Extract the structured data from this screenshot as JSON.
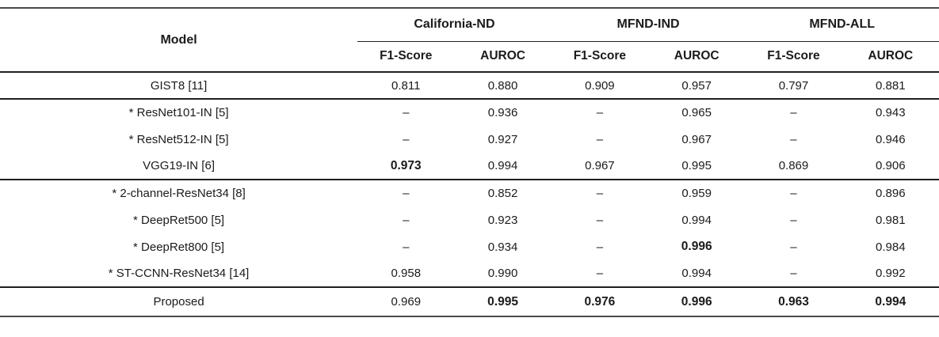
{
  "table": {
    "header": {
      "model": "Model",
      "groups": [
        {
          "label": "California-ND"
        },
        {
          "label": "MFND-IND"
        },
        {
          "label": "MFND-ALL"
        }
      ],
      "metrics": [
        "F1-Score",
        "AUROC",
        "F1-Score",
        "AUROC",
        "F1-Score",
        "AUROC"
      ]
    },
    "rows": [
      {
        "model": "GIST8 [11]",
        "values": [
          "0.811",
          "0.880",
          "0.909",
          "0.957",
          "0.797",
          "0.881"
        ],
        "bold": [
          false,
          false,
          false,
          false,
          false,
          false
        ]
      },
      {
        "model": "* ResNet101-IN [5]",
        "values": [
          "–",
          "0.936",
          "–",
          "0.965",
          "–",
          "0.943"
        ],
        "bold": [
          false,
          false,
          false,
          false,
          false,
          false
        ]
      },
      {
        "model": "* ResNet512-IN [5]",
        "values": [
          "–",
          "0.927",
          "–",
          "0.967",
          "–",
          "0.946"
        ],
        "bold": [
          false,
          false,
          false,
          false,
          false,
          false
        ]
      },
      {
        "model": "VGG19-IN [6]",
        "values": [
          "0.973",
          "0.994",
          "0.967",
          "0.995",
          "0.869",
          "0.906"
        ],
        "bold": [
          true,
          false,
          false,
          false,
          false,
          false
        ]
      },
      {
        "model": "* 2-channel-ResNet34 [8]",
        "values": [
          "–",
          "0.852",
          "–",
          "0.959",
          "–",
          "0.896"
        ],
        "bold": [
          false,
          false,
          false,
          false,
          false,
          false
        ]
      },
      {
        "model": "* DeepRet500 [5]",
        "values": [
          "–",
          "0.923",
          "–",
          "0.994",
          "–",
          "0.981"
        ],
        "bold": [
          false,
          false,
          false,
          false,
          false,
          false
        ]
      },
      {
        "model": "* DeepRet800 [5]",
        "values": [
          "–",
          "0.934",
          "–",
          "0.996",
          "–",
          "0.984"
        ],
        "bold": [
          false,
          false,
          false,
          true,
          false,
          false
        ]
      },
      {
        "model": "* ST-CCNN-ResNet34 [14]",
        "values": [
          "0.958",
          "0.990",
          "–",
          "0.994",
          "–",
          "0.992"
        ],
        "bold": [
          false,
          false,
          false,
          false,
          false,
          false
        ]
      },
      {
        "model": "Proposed",
        "values": [
          "0.969",
          "0.995",
          "0.976",
          "0.996",
          "0.963",
          "0.994"
        ],
        "bold": [
          false,
          true,
          true,
          true,
          true,
          true
        ]
      }
    ],
    "colors": {
      "text": "#1b1b1b",
      "heavy_rule": "#4a4a4a",
      "inner_rule": "#1f1f1f",
      "background": "#ffffff"
    }
  }
}
